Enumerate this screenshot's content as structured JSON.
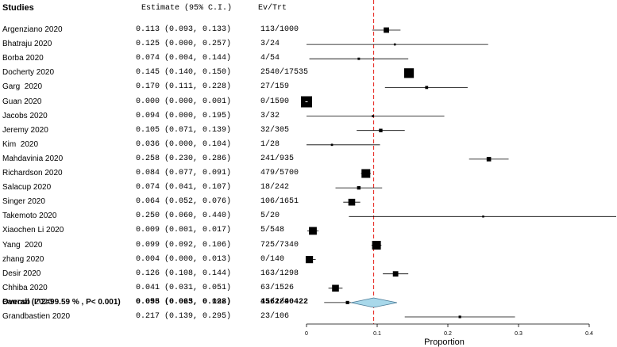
{
  "chart_data": {
    "type": "forest",
    "headers": {
      "studies": "Studies",
      "estimate": "Estimate (95% C.I.)",
      "events": "Ev/Trt"
    },
    "studies": [
      {
        "name": "Argenziano 2020",
        "est": 0.113,
        "lo": 0.093,
        "hi": 0.133,
        "ci_text": "0.113 (0.093, 0.133)",
        "ev": "113/1000",
        "weight": 0.4
      },
      {
        "name": "Bhatraju 2020",
        "est": 0.125,
        "lo": 0.0,
        "hi": 0.257,
        "ci_text": "0.125 (0.000, 0.257)",
        "ev": "3/24",
        "weight": 0.05
      },
      {
        "name": "Borba 2020",
        "est": 0.074,
        "lo": 0.004,
        "hi": 0.144,
        "ci_text": "0.074 (0.004, 0.144)",
        "ev": "4/54",
        "weight": 0.08
      },
      {
        "name": "Docherty 2020",
        "est": 0.145,
        "lo": 0.14,
        "hi": 0.15,
        "ci_text": "0.145 (0.140, 0.150)",
        "ev": "2540/17535",
        "weight": 0.85
      },
      {
        "name": "Garg  2020",
        "est": 0.17,
        "lo": 0.111,
        "hi": 0.228,
        "ci_text": "0.170 (0.111, 0.228)",
        "ev": "27/159",
        "weight": 0.15
      },
      {
        "name": "Guan 2020",
        "est": 0.0,
        "lo": 0.0,
        "hi": 0.001,
        "ci_text": "0.000 (0.000, 0.001)",
        "ev": "0/1590",
        "weight": 1.0
      },
      {
        "name": "Jacobs 2020",
        "est": 0.094,
        "lo": 0.0,
        "hi": 0.195,
        "ci_text": "0.094 (0.000, 0.195)",
        "ev": "3/32",
        "weight": 0.06
      },
      {
        "name": "Jeremy 2020",
        "est": 0.105,
        "lo": 0.071,
        "hi": 0.139,
        "ci_text": "0.105 (0.071, 0.139)",
        "ev": "32/305",
        "weight": 0.2
      },
      {
        "name": "Kim  2020",
        "est": 0.036,
        "lo": 0.0,
        "hi": 0.104,
        "ci_text": "0.036 (0.000, 0.104)",
        "ev": "1/28",
        "weight": 0.06
      },
      {
        "name": "Mahdavinia 2020",
        "est": 0.258,
        "lo": 0.23,
        "hi": 0.286,
        "ci_text": "0.258 (0.230, 0.286)",
        "ev": "241/935",
        "weight": 0.3
      },
      {
        "name": "Richardson 2020",
        "est": 0.084,
        "lo": 0.077,
        "hi": 0.091,
        "ci_text": "0.084 (0.077, 0.091)",
        "ev": "479/5700",
        "weight": 0.75
      },
      {
        "name": "Salacup 2020",
        "est": 0.074,
        "lo": 0.041,
        "hi": 0.107,
        "ci_text": "0.074 (0.041, 0.107)",
        "ev": "18/242",
        "weight": 0.2
      },
      {
        "name": "Singer 2020",
        "est": 0.064,
        "lo": 0.052,
        "hi": 0.076,
        "ci_text": "0.064 (0.052, 0.076)",
        "ev": "106/1651",
        "weight": 0.55
      },
      {
        "name": "Takemoto 2020",
        "est": 0.25,
        "lo": 0.06,
        "hi": 0.44,
        "ci_text": "0.250 (0.060, 0.440)",
        "ev": "5/20",
        "weight": 0.04
      },
      {
        "name": "Xiaochen Li 2020",
        "est": 0.009,
        "lo": 0.001,
        "hi": 0.017,
        "ci_text": "0.009 (0.001, 0.017)",
        "ev": "5/548",
        "weight": 0.65
      },
      {
        "name": "Yang  2020",
        "est": 0.099,
        "lo": 0.092,
        "hi": 0.106,
        "ci_text": "0.099 (0.092, 0.106)",
        "ev": "725/7340",
        "weight": 0.75
      },
      {
        "name": "zhang 2020",
        "est": 0.004,
        "lo": 0.0,
        "hi": 0.013,
        "ci_text": "0.004 (0.000, 0.013)",
        "ev": "0/140",
        "weight": 0.6
      },
      {
        "name": "Desir 2020",
        "est": 0.126,
        "lo": 0.108,
        "hi": 0.144,
        "ci_text": "0.126 (0.108, 0.144)",
        "ev": "163/1298",
        "weight": 0.4
      },
      {
        "name": "Chhiba 2020",
        "est": 0.041,
        "lo": 0.031,
        "hi": 0.051,
        "ci_text": "0.041 (0.031, 0.051)",
        "ev": "63/1526",
        "weight": 0.55
      },
      {
        "name": "Barroso  2020",
        "est": 0.058,
        "lo": 0.025,
        "hi": 0.092,
        "ci_text": "0.058 (0.025, 0.092)",
        "ev": "11/189",
        "weight": 0.18
      },
      {
        "name": "Grandbastien 2020",
        "est": 0.217,
        "lo": 0.139,
        "hi": 0.295,
        "ci_text": "0.217 (0.139, 0.295)",
        "ev": "23/106",
        "weight": 0.1
      }
    ],
    "overall": {
      "label": "Overall (I^2=99.59 % , P< 0.001)",
      "est": 0.095,
      "lo": 0.063,
      "hi": 0.128,
      "ci_text": "0.095 (0.063, 0.128)",
      "ev": "4562/40422"
    },
    "xaxis": {
      "label": "Proportion",
      "min": 0,
      "max": 0.4,
      "ticks": [
        0,
        0.1,
        0.2,
        0.3,
        0.4
      ],
      "tick_labels": [
        "0",
        "0.1",
        "0.2",
        "0.3",
        "0.4"
      ]
    },
    "reference_line": 0.095,
    "colors": {
      "reference_line": "#e8302a",
      "diamond_fill": "#a8d8ea",
      "diamond_stroke": "#4a7a96",
      "marker": "#000000"
    }
  }
}
